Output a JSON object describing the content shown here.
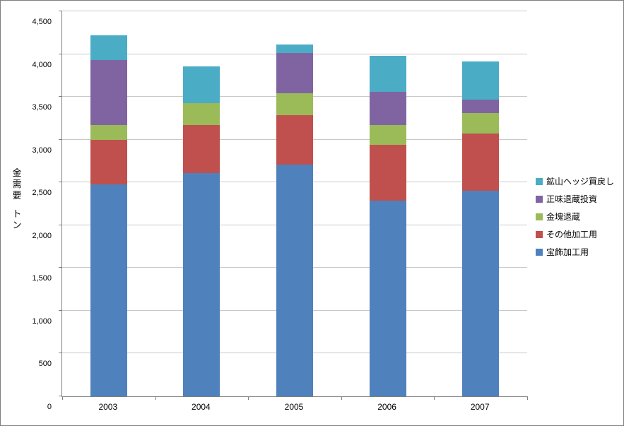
{
  "chart_data": {
    "type": "bar",
    "stacked": true,
    "title": "",
    "categories": [
      "2003",
      "2004",
      "2005",
      "2006",
      "2007"
    ],
    "series": [
      {
        "name": "宝飾加工用",
        "color": "#4F81BD",
        "values": [
          2480,
          2610,
          2710,
          2290,
          2400
        ]
      },
      {
        "name": "その他加工用",
        "color": "#C0504D",
        "values": [
          520,
          560,
          580,
          650,
          670
        ]
      },
      {
        "name": "金塊退蔵",
        "color": "#9BBB59",
        "values": [
          170,
          260,
          250,
          230,
          240
        ]
      },
      {
        "name": "正味退蔵投資",
        "color": "#8064A2",
        "values": [
          760,
          0,
          470,
          390,
          160
        ]
      },
      {
        "name": "鉱山ヘッジ買戻し",
        "color": "#4BACC6",
        "values": [
          290,
          430,
          100,
          420,
          440
        ]
      }
    ],
    "ylabel_lines": [
      "金需要",
      "トン"
    ],
    "xlabel": "",
    "ylim": [
      0,
      4500
    ],
    "ytick_step": 500,
    "ytick_labels": [
      "0",
      "500",
      "1,000",
      "1,500",
      "2,000",
      "2,500",
      "3,000",
      "3,500",
      "4,000",
      "4,500"
    ],
    "grid": true,
    "legend_position": "right",
    "legend_order": [
      "鉱山ヘッジ買戻し",
      "正味退蔵投資",
      "金塊退蔵",
      "その他加工用",
      "宝飾加工用"
    ]
  },
  "colors": {
    "gridline": "#c9c9c9",
    "axis": "#808080",
    "background": "#ffffff"
  }
}
